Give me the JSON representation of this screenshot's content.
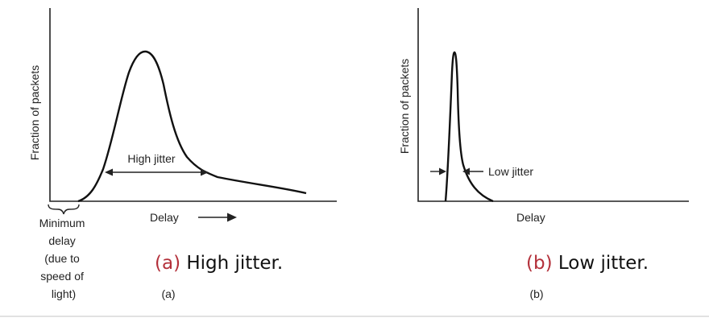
{
  "panel_a": {
    "ylabel": "Fraction of packets",
    "xlabel": "Delay",
    "annotation": "High jitter",
    "min_delay_lines": [
      "Minimum",
      "delay",
      "(due to",
      "speed of",
      "light)"
    ],
    "caption_letter": "(a)",
    "caption_text": " High jitter.",
    "sublabel": "(a)"
  },
  "panel_b": {
    "ylabel": "Fraction of packets",
    "xlabel": "Delay",
    "annotation": "Low jitter",
    "caption_letter": "(b)",
    "caption_text": " Low jitter.",
    "sublabel": "(b)"
  },
  "colors": {
    "caption_accent": "#b3303a",
    "curve": "#111111",
    "divider": "#d9d9d9"
  }
}
